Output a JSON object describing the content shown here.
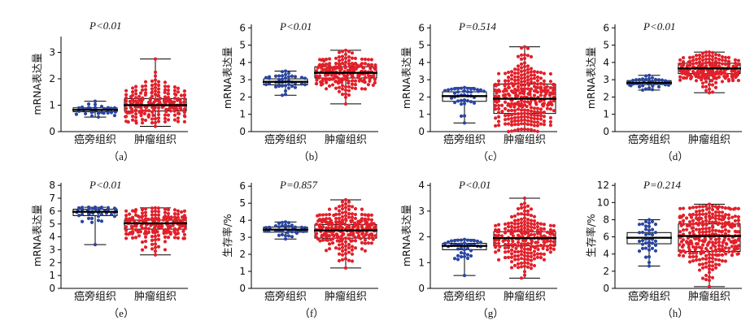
{
  "colors": {
    "normal": "#2a46a2",
    "tumor": "#e2202a",
    "axis": "#000000"
  },
  "chart_data": [
    {
      "id": "a",
      "type": "box-scatter",
      "p_text": "P<0.01",
      "ylabel": "mRNA表达量",
      "categories": [
        "癌旁组织",
        "肿瘤组织"
      ],
      "caption": "（a）",
      "ylim": [
        0,
        3.6
      ],
      "yticks": [
        0,
        1,
        2,
        3
      ],
      "series": [
        {
          "category": "癌旁组织",
          "n": 40,
          "min": 0.55,
          "q1": 0.75,
          "median": 0.82,
          "q3": 0.9,
          "max": 1.15,
          "mean": 0.82,
          "sd": 0.12
        },
        {
          "category": "肿瘤组织",
          "n": 220,
          "min": 0.2,
          "q1": 0.78,
          "median": 1.0,
          "q3": 1.25,
          "max": 2.75,
          "mean": 1.05,
          "sd": 0.42
        }
      ]
    },
    {
      "id": "b",
      "type": "box-scatter",
      "p_text": "P<0.01",
      "ylabel": "mRNA表达量",
      "categories": [
        "癌旁组织",
        "肿瘤组织"
      ],
      "caption": "（b）",
      "ylim": [
        0,
        6.2
      ],
      "yticks": [
        0,
        1,
        2,
        3,
        4,
        5,
        6
      ],
      "series": [
        {
          "category": "癌旁组织",
          "n": 40,
          "min": 2.1,
          "q1": 2.7,
          "median": 2.88,
          "q3": 3.05,
          "max": 3.5,
          "mean": 2.88,
          "sd": 0.28
        },
        {
          "category": "肿瘤组织",
          "n": 220,
          "min": 1.6,
          "q1": 3.1,
          "median": 3.4,
          "q3": 3.75,
          "max": 4.7,
          "mean": 3.4,
          "sd": 0.55
        }
      ]
    },
    {
      "id": "c",
      "type": "box-scatter",
      "p_text": "P=0.514",
      "ylabel": "mRNA表达量",
      "categories": [
        "癌旁组织",
        "肿瘤组织"
      ],
      "caption": "（c）",
      "ylim": [
        0,
        6.2
      ],
      "yticks": [
        0,
        1,
        2,
        3,
        4,
        5,
        6
      ],
      "series": [
        {
          "category": "癌旁组织",
          "n": 40,
          "min": 0.5,
          "q1": 1.75,
          "median": 2.05,
          "q3": 2.3,
          "max": 2.55,
          "mean": 2.0,
          "sd": 0.4
        },
        {
          "category": "肿瘤组织",
          "n": 320,
          "min": 0.0,
          "q1": 1.05,
          "median": 1.9,
          "q3": 2.75,
          "max": 4.9,
          "mean": 1.95,
          "sd": 1.1
        }
      ]
    },
    {
      "id": "d",
      "type": "box-scatter",
      "p_text": "P<0.01",
      "ylabel": "mRNA表达量",
      "categories": [
        "癌旁组织",
        "肿瘤组织"
      ],
      "caption": "（d）",
      "ylim": [
        0,
        6.2
      ],
      "yticks": [
        0,
        1,
        2,
        3,
        4,
        5,
        6
      ],
      "series": [
        {
          "category": "癌旁组织",
          "n": 40,
          "min": 2.4,
          "q1": 2.72,
          "median": 2.82,
          "q3": 2.95,
          "max": 3.25,
          "mean": 2.82,
          "sd": 0.18
        },
        {
          "category": "肿瘤组织",
          "n": 220,
          "min": 2.25,
          "q1": 3.35,
          "median": 3.65,
          "q3": 3.95,
          "max": 4.6,
          "mean": 3.6,
          "sd": 0.45
        }
      ]
    },
    {
      "id": "e",
      "type": "box-scatter",
      "p_text": "P<0.01",
      "ylabel": "mRNA表达量",
      "categories": [
        "癌旁组织",
        "肿瘤组织"
      ],
      "caption": "（e）",
      "ylim": [
        0,
        8.2
      ],
      "yticks": [
        0,
        1,
        2,
        3,
        4,
        5,
        6,
        7,
        8
      ],
      "series": [
        {
          "category": "癌旁组织",
          "n": 40,
          "min": 3.4,
          "q1": 5.65,
          "median": 5.95,
          "q3": 6.15,
          "max": 6.3,
          "mean": 5.85,
          "sd": 0.5
        },
        {
          "category": "肿瘤组织",
          "n": 220,
          "min": 2.6,
          "q1": 4.6,
          "median": 5.05,
          "q3": 5.3,
          "max": 6.25,
          "mean": 4.9,
          "sd": 0.7
        }
      ]
    },
    {
      "id": "f",
      "type": "box-scatter",
      "p_text": "P=0.857",
      "ylabel": "生存率/%",
      "categories": [
        "癌旁组织",
        "肿瘤组织"
      ],
      "caption": "（f）",
      "ylim": [
        0,
        6.2
      ],
      "yticks": [
        0,
        1,
        2,
        3,
        4,
        5,
        6
      ],
      "series": [
        {
          "category": "癌旁组织",
          "n": 40,
          "min": 2.9,
          "q1": 3.3,
          "median": 3.45,
          "q3": 3.6,
          "max": 3.9,
          "mean": 3.45,
          "sd": 0.22
        },
        {
          "category": "肿瘤组织",
          "n": 260,
          "min": 1.2,
          "q1": 2.95,
          "median": 3.4,
          "q3": 3.75,
          "max": 5.2,
          "mean": 3.4,
          "sd": 0.65
        }
      ]
    },
    {
      "id": "g",
      "type": "box-scatter",
      "p_text": "P<0.01",
      "ylabel": "mRNA表达量",
      "categories": [
        "癌旁组织",
        "肿瘤组织"
      ],
      "caption": "（g）",
      "ylim": [
        0,
        4.1
      ],
      "yticks": [
        0,
        1,
        2,
        3,
        4
      ],
      "series": [
        {
          "category": "癌旁组织",
          "n": 40,
          "min": 0.5,
          "q1": 1.5,
          "median": 1.65,
          "q3": 1.75,
          "max": 1.9,
          "mean": 1.6,
          "sd": 0.25
        },
        {
          "category": "肿瘤组织",
          "n": 230,
          "min": 0.4,
          "q1": 1.65,
          "median": 1.95,
          "q3": 2.2,
          "max": 3.5,
          "mean": 1.95,
          "sd": 0.55
        }
      ]
    },
    {
      "id": "h",
      "type": "box-scatter",
      "p_text": "P=0.214",
      "ylabel": "生存率/%",
      "categories": [
        "癌旁组织",
        "肿瘤组织"
      ],
      "caption": "（h）",
      "ylim": [
        0,
        12.3
      ],
      "yticks": [
        0,
        2,
        4,
        6,
        8,
        10,
        12
      ],
      "series": [
        {
          "category": "癌旁组织",
          "n": 40,
          "min": 2.6,
          "q1": 5.2,
          "median": 5.9,
          "q3": 6.5,
          "max": 8.0,
          "mean": 5.9,
          "sd": 1.1
        },
        {
          "category": "肿瘤组织",
          "n": 320,
          "min": 0.2,
          "q1": 4.3,
          "median": 6.1,
          "q3": 7.5,
          "max": 9.8,
          "mean": 5.9,
          "sd": 2.2
        }
      ]
    }
  ]
}
